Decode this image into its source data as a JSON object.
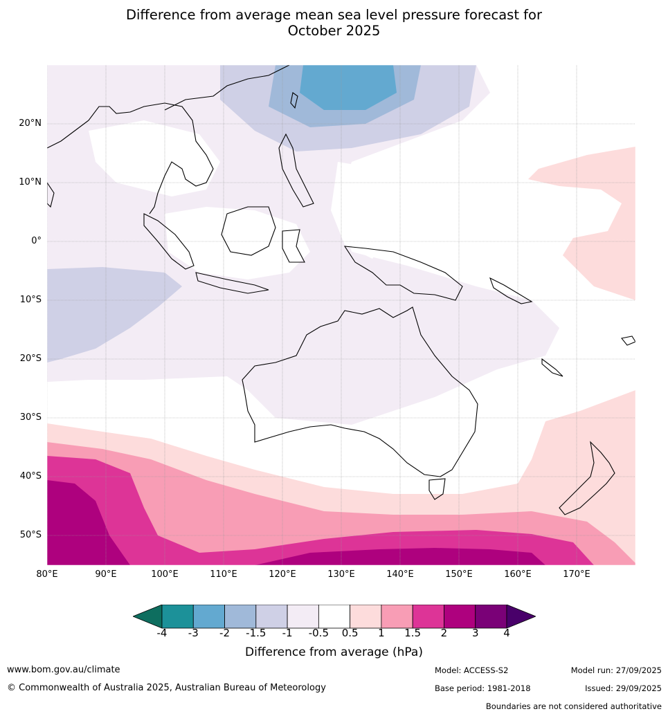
{
  "title_line1": "Difference from average mean sea level pressure forecast for",
  "title_line2": "October 2025",
  "lat_labels": [
    "20°N",
    "10°N",
    "0°",
    "10°S",
    "20°S",
    "30°S",
    "40°S",
    "50°S"
  ],
  "lon_labels": [
    "80°E",
    "90°E",
    "100°E",
    "110°E",
    "120°E",
    "130°E",
    "140°E",
    "150°E",
    "160°E",
    "170°E"
  ],
  "colorbar": {
    "ticks": [
      "-4",
      "-3",
      "-2",
      "-1.5",
      "-1",
      "-0.5",
      "0.5",
      "1",
      "1.5",
      "2",
      "3",
      "4"
    ],
    "colors": [
      "#0e6e5f",
      "#1c9199",
      "#63a9d0",
      "#a0b9d9",
      "#cfd0e6",
      "#f3ecf5",
      "#ffffff",
      "#fddcdc",
      "#f89db5",
      "#dd3497",
      "#ae017e",
      "#7a0177",
      "#49006a"
    ],
    "label": "Difference from average (hPa)"
  },
  "footer": {
    "website": "www.bom.gov.au/climate",
    "copyright": "© Commonwealth of Australia 2025, Australian Bureau of Meteorology",
    "model": "Model: ACCESS-S2",
    "base_period": "Base period: 1981-2018",
    "model_run": "Model run: 27/09/2025",
    "issued": "Issued: 29/09/2025",
    "disclaimer": "Boundaries are not considered authoritative"
  }
}
